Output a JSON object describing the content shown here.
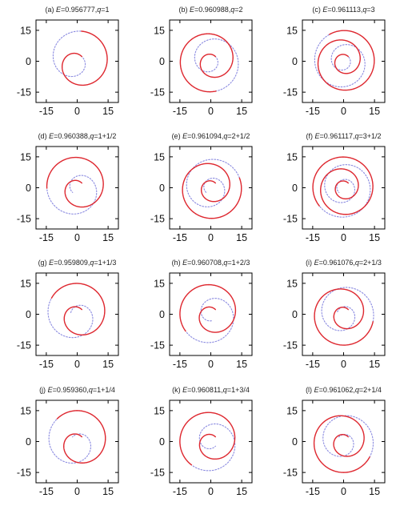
{
  "figure": {
    "colors": {
      "solid_orbit": "#e0282e",
      "dotted_orbit": "#8a8ae0",
      "frame": "#000000"
    }
  },
  "chart_data": [
    {
      "type": "line",
      "panel_label": "(a)",
      "energy": "0.956777",
      "q": "1",
      "title_prefix": "(a) ",
      "title_suffix": ",",
      "xlim": [
        -20,
        20
      ],
      "ylim": [
        -20,
        20
      ],
      "x_ticks": [
        "-15",
        "0",
        "15"
      ],
      "y_ticks": [
        "15",
        "0",
        "-15"
      ],
      "series": [
        {
          "style": "solid",
          "q": 1
        },
        {
          "style": "dotted",
          "q": 1
        }
      ]
    },
    {
      "type": "line",
      "panel_label": "(b)",
      "energy": "0.960988",
      "q": "2",
      "title_prefix": "(b) ",
      "title_suffix": ",",
      "xlim": [
        -20,
        20
      ],
      "ylim": [
        -20,
        20
      ],
      "x_ticks": [
        "-15",
        "0",
        "15"
      ],
      "y_ticks": [
        "15",
        "0",
        "-15"
      ],
      "series": [
        {
          "style": "solid",
          "q": 2
        },
        {
          "style": "dotted",
          "q": 2
        }
      ]
    },
    {
      "type": "line",
      "panel_label": "(c)",
      "energy": "0.961113",
      "q": "3",
      "title_prefix": "(c) ",
      "title_suffix": ",",
      "xlim": [
        -20,
        20
      ],
      "ylim": [
        -20,
        20
      ],
      "x_ticks": [
        "-15",
        "0",
        "15"
      ],
      "y_ticks": [
        "15",
        "0",
        "-15"
      ],
      "series": [
        {
          "style": "solid",
          "q": 3
        },
        {
          "style": "dotted",
          "q": 3
        }
      ]
    },
    {
      "type": "line",
      "panel_label": "(d)",
      "energy": "0.960388",
      "q": "1+1/2",
      "title_prefix": "(d) ",
      "title_suffix": ",",
      "xlim": [
        -20,
        20
      ],
      "ylim": [
        -20,
        20
      ],
      "x_ticks": [
        "-15",
        "0",
        "15"
      ],
      "y_ticks": [
        "15",
        "0",
        "-15"
      ],
      "series": [
        {
          "style": "solid",
          "q": 1.5
        },
        {
          "style": "dotted",
          "q": 1.5
        }
      ]
    },
    {
      "type": "line",
      "panel_label": "(e)",
      "energy": "0.961094",
      "q": "2+1/2",
      "title_prefix": "(e) ",
      "title_suffix": ",",
      "xlim": [
        -20,
        20
      ],
      "ylim": [
        -20,
        20
      ],
      "x_ticks": [
        "-15",
        "0",
        "15"
      ],
      "y_ticks": [
        "15",
        "0",
        "-15"
      ],
      "series": [
        {
          "style": "solid",
          "q": 2.5
        },
        {
          "style": "dotted",
          "q": 2.5
        }
      ]
    },
    {
      "type": "line",
      "panel_label": "(f)",
      "energy": "0.961117",
      "q": "3+1/2",
      "title_prefix": "(f) ",
      "title_suffix": ",",
      "xlim": [
        -20,
        20
      ],
      "ylim": [
        -20,
        20
      ],
      "x_ticks": [
        "-15",
        "0",
        "15"
      ],
      "y_ticks": [
        "15",
        "0",
        "-15"
      ],
      "series": [
        {
          "style": "solid",
          "q": 3.5
        },
        {
          "style": "dotted",
          "q": 3.5
        }
      ]
    },
    {
      "type": "line",
      "panel_label": "(g)",
      "energy": "0.959809",
      "q": "1+1/3",
      "title_prefix": "(g) ",
      "title_suffix": ",",
      "xlim": [
        -20,
        20
      ],
      "ylim": [
        -20,
        20
      ],
      "x_ticks": [
        "-15",
        "0",
        "15"
      ],
      "y_ticks": [
        "15",
        "0",
        "-15"
      ],
      "series": [
        {
          "style": "solid",
          "q": 1.3333
        },
        {
          "style": "dotted",
          "q": 1.3333
        }
      ]
    },
    {
      "type": "line",
      "panel_label": "(h)",
      "energy": "0.960708",
      "q": "1+2/3",
      "title_prefix": "(h) ",
      "title_suffix": ",",
      "xlim": [
        -20,
        20
      ],
      "ylim": [
        -20,
        20
      ],
      "x_ticks": [
        "-15",
        "0",
        "15"
      ],
      "y_ticks": [
        "15",
        "0",
        "-15"
      ],
      "series": [
        {
          "style": "solid",
          "q": 1.6667
        },
        {
          "style": "dotted",
          "q": 1.6667
        }
      ]
    },
    {
      "type": "line",
      "panel_label": "(i)",
      "energy": "0.961076",
      "q": "2+1/3",
      "title_prefix": "(i) ",
      "title_suffix": ",",
      "xlim": [
        -20,
        20
      ],
      "ylim": [
        -20,
        20
      ],
      "x_ticks": [
        "-15",
        "0",
        "15"
      ],
      "y_ticks": [
        "15",
        "0",
        "-15"
      ],
      "series": [
        {
          "style": "solid",
          "q": 2.3333
        },
        {
          "style": "dotted",
          "q": 2.3333
        }
      ]
    },
    {
      "type": "line",
      "panel_label": "(j)",
      "energy": "0.959360",
      "q": "1+1/4",
      "title_prefix": "(j) ",
      "title_suffix": ",",
      "xlim": [
        -20,
        20
      ],
      "ylim": [
        -20,
        20
      ],
      "x_ticks": [
        "-15",
        "0",
        "15"
      ],
      "y_ticks": [
        "15",
        "0",
        "-15"
      ],
      "series": [
        {
          "style": "solid",
          "q": 1.25
        },
        {
          "style": "dotted",
          "q": 1.25
        }
      ]
    },
    {
      "type": "line",
      "panel_label": "(k)",
      "energy": "0.960811",
      "q": "1+3/4",
      "title_prefix": "(k) ",
      "title_suffix": ",",
      "xlim": [
        -20,
        20
      ],
      "ylim": [
        -20,
        20
      ],
      "x_ticks": [
        "-15",
        "0",
        "15"
      ],
      "y_ticks": [
        "15",
        "0",
        "-15"
      ],
      "series": [
        {
          "style": "solid",
          "q": 1.75
        },
        {
          "style": "dotted",
          "q": 1.75
        }
      ]
    },
    {
      "type": "line",
      "panel_label": "(l)",
      "energy": "0.961062",
      "q": "2+1/4",
      "title_prefix": "(l) ",
      "title_suffix": ",",
      "xlim": [
        -20,
        20
      ],
      "ylim": [
        -20,
        20
      ],
      "x_ticks": [
        "-15",
        "0",
        "15"
      ],
      "y_ticks": [
        "15",
        "0",
        "-15"
      ],
      "series": [
        {
          "style": "solid",
          "q": 2.25
        },
        {
          "style": "dotted",
          "q": 2.25
        }
      ]
    }
  ]
}
